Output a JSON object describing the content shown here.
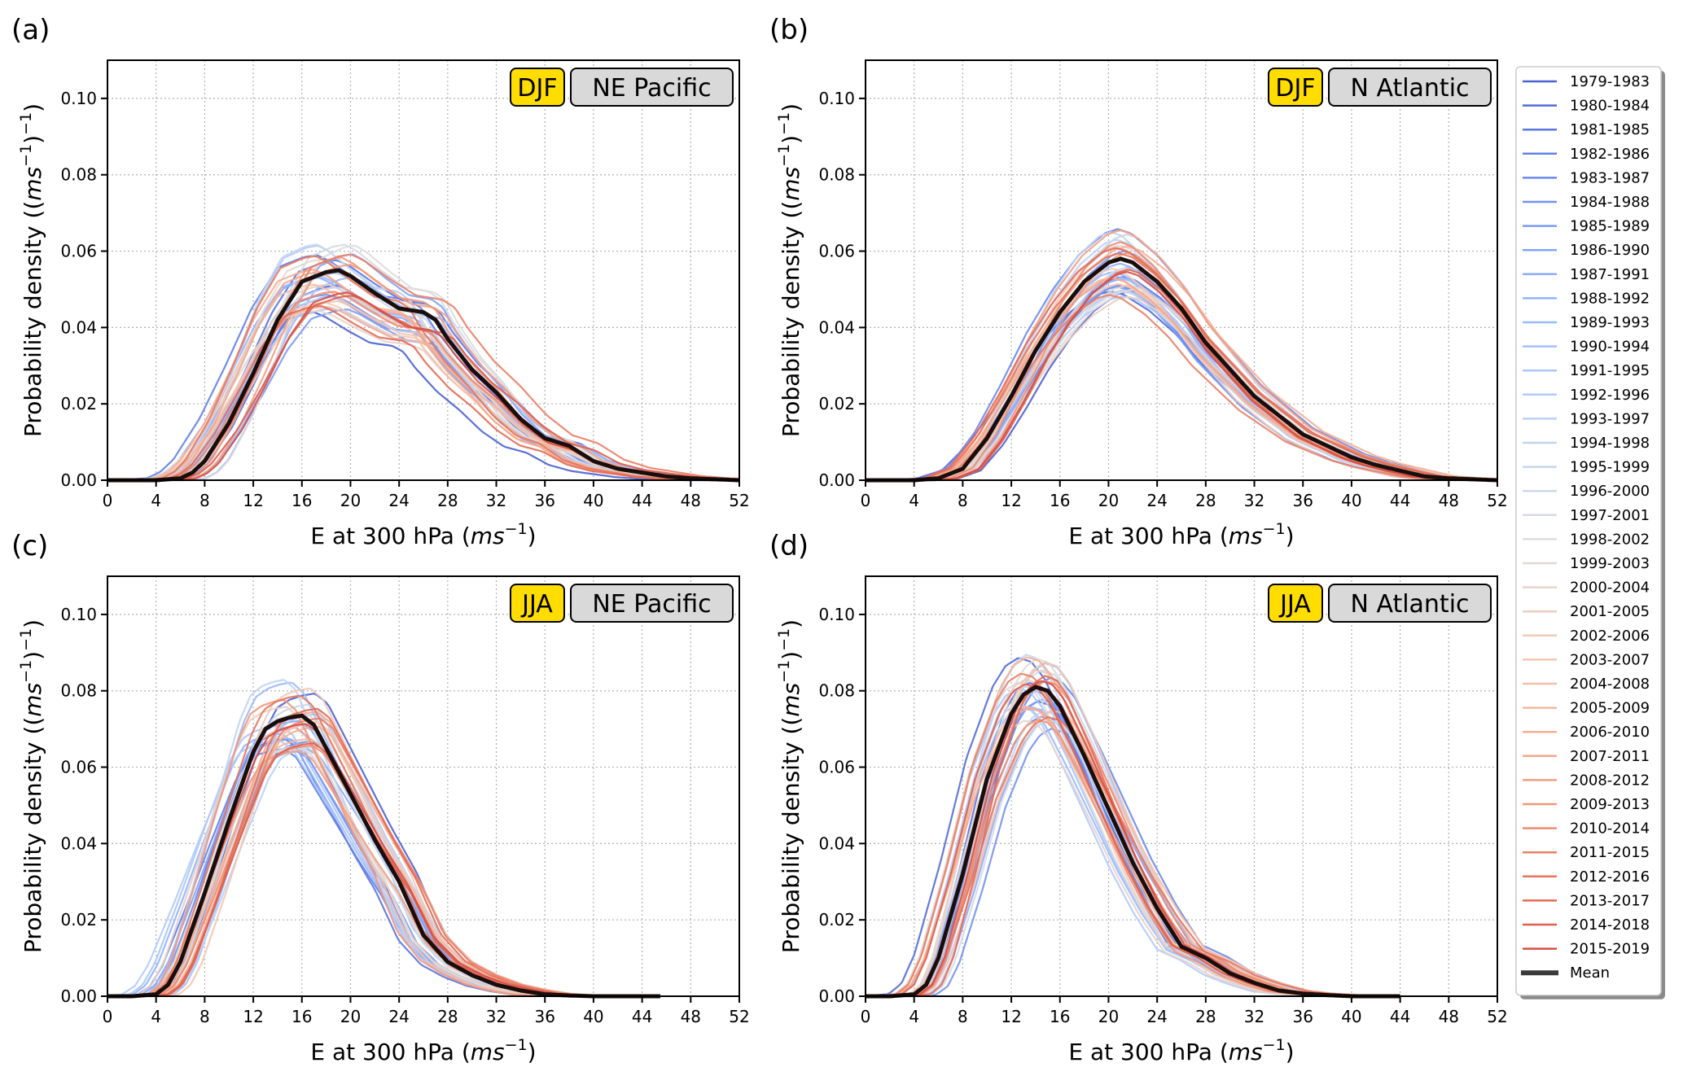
{
  "figure": {
    "legend": {
      "entries": [
        "1979-1983",
        "1980-1984",
        "1981-1985",
        "1982-1986",
        "1983-1987",
        "1984-1988",
        "1985-1989",
        "1986-1990",
        "1987-1991",
        "1988-1992",
        "1989-1993",
        "1990-1994",
        "1991-1995",
        "1992-1996",
        "1993-1997",
        "1994-1998",
        "1995-1999",
        "1996-2000",
        "1997-2001",
        "1998-2002",
        "1999-2003",
        "2000-2004",
        "2001-2005",
        "2002-2006",
        "2003-2007",
        "2004-2008",
        "2005-2009",
        "2006-2010",
        "2007-2011",
        "2008-2012",
        "2009-2013",
        "2010-2014",
        "2011-2015",
        "2012-2016",
        "2013-2017",
        "2014-2018",
        "2015-2019"
      ],
      "mean_label": "Mean",
      "mean_color": "#3a3a3a",
      "placement": "right-outside",
      "colormap": "coolwarm"
    },
    "badge_colors": {
      "season": "#ffdd00",
      "region": "#d9d9d9"
    }
  },
  "chart_data": [
    {
      "panel": "(a)",
      "type": "line",
      "season": "DJF",
      "region": "NE Pacific",
      "xlabel": "E at 300 hPa",
      "xlabel_unit": "ms",
      "xlabel_unit_exp": "−1",
      "ylabel": "Probability density",
      "ylabel_unit": "ms",
      "ylabel_unit_exp": "−1",
      "xlim": [
        0,
        52
      ],
      "ylim": [
        0,
        0.11
      ],
      "xticks": [
        0,
        4,
        8,
        12,
        16,
        20,
        24,
        28,
        32,
        36,
        40,
        44,
        48,
        52
      ],
      "yticks": [
        "0.00",
        "0.02",
        "0.04",
        "0.06",
        "0.08",
        "0.10"
      ],
      "grid": true,
      "x_end": 52,
      "mean": {
        "x": [
          0,
          4,
          6,
          7,
          8,
          10,
          12,
          14,
          16,
          18,
          19,
          20,
          22,
          24,
          26,
          27,
          28,
          30,
          32,
          34,
          36,
          38,
          40,
          42,
          44,
          46,
          48,
          52
        ],
        "y": [
          0,
          0,
          0.0005,
          0.002,
          0.005,
          0.015,
          0.028,
          0.042,
          0.052,
          0.0545,
          0.055,
          0.0535,
          0.049,
          0.045,
          0.044,
          0.042,
          0.037,
          0.029,
          0.023,
          0.016,
          0.011,
          0.009,
          0.005,
          0.003,
          0.002,
          0.001,
          0.0005,
          0
        ]
      },
      "envelope": {
        "peak_min": 0.044,
        "peak_max": 0.062,
        "shift_min": -2.0,
        "shift_max": 1.5
      }
    },
    {
      "panel": "(b)",
      "type": "line",
      "season": "DJF",
      "region": "N Atlantic",
      "xlabel": "E at 300 hPa",
      "xlabel_unit": "ms",
      "xlabel_unit_exp": "−1",
      "ylabel": "Probability density",
      "ylabel_unit": "ms",
      "ylabel_unit_exp": "−1",
      "xlim": [
        0,
        52
      ],
      "ylim": [
        0,
        0.11
      ],
      "xticks": [
        0,
        4,
        8,
        12,
        16,
        20,
        24,
        28,
        32,
        36,
        40,
        44,
        48,
        52
      ],
      "yticks": [
        "0.00",
        "0.02",
        "0.04",
        "0.06",
        "0.08",
        "0.10"
      ],
      "grid": true,
      "x_end": 52,
      "mean": {
        "x": [
          0,
          4,
          6,
          8,
          10,
          12,
          14,
          16,
          18,
          20,
          21,
          22,
          24,
          26,
          28,
          30,
          32,
          34,
          36,
          38,
          40,
          42,
          44,
          46,
          48,
          52
        ],
        "y": [
          0,
          0,
          0.0005,
          0.003,
          0.011,
          0.022,
          0.034,
          0.044,
          0.052,
          0.057,
          0.058,
          0.057,
          0.052,
          0.045,
          0.036,
          0.029,
          0.022,
          0.017,
          0.012,
          0.009,
          0.006,
          0.004,
          0.0025,
          0.001,
          0.0005,
          0
        ]
      },
      "envelope": {
        "peak_min": 0.048,
        "peak_max": 0.066,
        "shift_min": -1.0,
        "shift_max": 1.0
      }
    },
    {
      "panel": "(c)",
      "type": "line",
      "season": "JJA",
      "region": "NE Pacific",
      "xlabel": "E at 300 hPa",
      "xlabel_unit": "ms",
      "xlabel_unit_exp": "−1",
      "ylabel": "Probability density",
      "ylabel_unit": "ms",
      "ylabel_unit_exp": "−1",
      "xlim": [
        0,
        52
      ],
      "ylim": [
        0,
        0.11
      ],
      "xticks": [
        0,
        4,
        8,
        12,
        16,
        20,
        24,
        28,
        32,
        36,
        40,
        44,
        48,
        52
      ],
      "yticks": [
        "0.00",
        "0.02",
        "0.04",
        "0.06",
        "0.08",
        "0.10"
      ],
      "grid": true,
      "x_end": 45.5,
      "mean": {
        "x": [
          0,
          2,
          4,
          5,
          6,
          8,
          10,
          12,
          13,
          14,
          15,
          16,
          17,
          18,
          20,
          22,
          24,
          26,
          28,
          30,
          32,
          34,
          36,
          38,
          40,
          45.5
        ],
        "y": [
          0,
          0,
          0.0005,
          0.003,
          0.009,
          0.027,
          0.046,
          0.064,
          0.07,
          0.072,
          0.073,
          0.0735,
          0.071,
          0.065,
          0.053,
          0.041,
          0.03,
          0.016,
          0.009,
          0.0055,
          0.003,
          0.0015,
          0.0005,
          0.0002,
          0,
          0
        ]
      },
      "envelope": {
        "peak_min": 0.064,
        "peak_max": 0.084,
        "shift_min": -2.0,
        "shift_max": 1.5
      }
    },
    {
      "panel": "(d)",
      "type": "line",
      "season": "JJA",
      "region": "N Atlantic",
      "xlabel": "E at 300 hPa",
      "xlabel_unit": "ms",
      "xlabel_unit_exp": "−1",
      "ylabel": "Probability density",
      "ylabel_unit": "ms",
      "ylabel_unit_exp": "−1",
      "xlim": [
        0,
        52
      ],
      "ylim": [
        0,
        0.11
      ],
      "xticks": [
        0,
        4,
        8,
        12,
        16,
        20,
        24,
        28,
        32,
        36,
        40,
        44,
        48,
        52
      ],
      "yticks": [
        "0.00",
        "0.02",
        "0.04",
        "0.06",
        "0.08",
        "0.10"
      ],
      "grid": true,
      "x_end": 44,
      "mean": {
        "x": [
          0,
          2,
          4,
          5,
          6,
          8,
          10,
          12,
          13,
          14,
          15,
          16,
          18,
          20,
          22,
          24,
          26,
          28,
          30,
          32,
          34,
          36,
          38,
          40,
          44
        ],
        "y": [
          0,
          0,
          0.0005,
          0.003,
          0.01,
          0.032,
          0.057,
          0.074,
          0.079,
          0.081,
          0.08,
          0.076,
          0.063,
          0.049,
          0.035,
          0.023,
          0.013,
          0.01,
          0.006,
          0.0035,
          0.0015,
          0.0007,
          0.0003,
          0,
          0
        ]
      },
      "envelope": {
        "peak_min": 0.07,
        "peak_max": 0.09,
        "shift_min": -1.5,
        "shift_max": 1.5
      }
    }
  ]
}
